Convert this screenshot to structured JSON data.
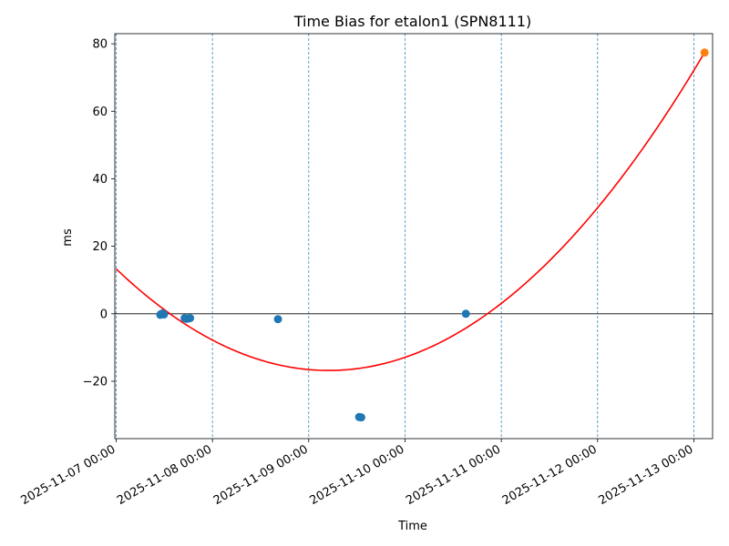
{
  "chart_data": {
    "type": "scatter",
    "title": "Time Bias for etalon1 (SPN8111)",
    "xlabel": "Time",
    "ylabel": "ms",
    "xlim": [
      "2025-11-06 23:40",
      "2025-11-13 04:40"
    ],
    "ylim": [
      -37,
      83
    ],
    "x_ticks": [
      "2025-11-07 00:00",
      "2025-11-08 00:00",
      "2025-11-09 00:00",
      "2025-11-10 00:00",
      "2025-11-11 00:00",
      "2025-11-12 00:00",
      "2025-11-13 00:00"
    ],
    "y_ticks": [
      -20,
      0,
      20,
      40,
      60,
      80
    ],
    "vertical_gridlines": true,
    "zero_line": 0,
    "series": [
      {
        "kind": "scatter",
        "color": "#1f77b4",
        "points": [
          {
            "x": "2025-11-07 11:00",
            "y": -0.3
          },
          {
            "x": "2025-11-07 11:10",
            "y": -0.1
          },
          {
            "x": "2025-11-07 11:35",
            "y": 0.1
          },
          {
            "x": "2025-11-07 11:55",
            "y": -0.2
          },
          {
            "x": "2025-11-07 17:05",
            "y": -1.3
          },
          {
            "x": "2025-11-07 17:30",
            "y": -1.5
          },
          {
            "x": "2025-11-07 18:00",
            "y": -1.4
          },
          {
            "x": "2025-11-07 18:25",
            "y": -1.3
          },
          {
            "x": "2025-11-08 16:20",
            "y": -1.6
          },
          {
            "x": "2025-11-09 12:35",
            "y": -30.6
          },
          {
            "x": "2025-11-09 13:05",
            "y": -30.7
          },
          {
            "x": "2025-11-10 15:10",
            "y": 0.0
          }
        ]
      },
      {
        "kind": "scatter",
        "color": "#ff7f0e",
        "points": [
          {
            "x": "2025-11-13 02:40",
            "y": 77.4
          }
        ]
      },
      {
        "kind": "line",
        "color": "#ff0000",
        "fit": "quadratic",
        "anchor_points": [
          {
            "x": "2025-11-07 00:00",
            "y": 13.3
          },
          {
            "x": "2025-11-09 04:30",
            "y": -16.8
          },
          {
            "x": "2025-11-13 02:40",
            "y": 77.4
          }
        ]
      }
    ]
  }
}
